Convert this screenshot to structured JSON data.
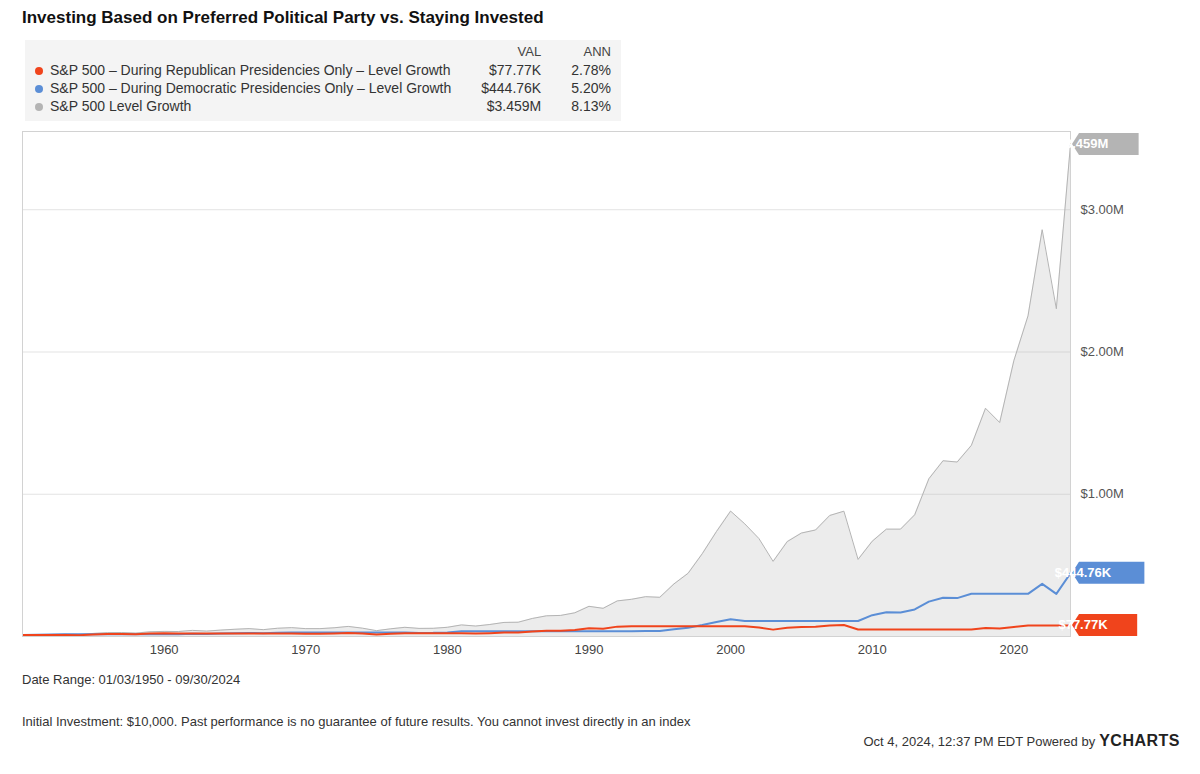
{
  "chart_data": {
    "type": "line",
    "title": "Investing Based on Preferred Political Party vs. Staying Invested",
    "x": [
      1950,
      1951,
      1952,
      1953,
      1954,
      1955,
      1956,
      1957,
      1958,
      1959,
      1960,
      1961,
      1962,
      1963,
      1964,
      1965,
      1966,
      1967,
      1968,
      1969,
      1970,
      1971,
      1972,
      1973,
      1974,
      1975,
      1976,
      1977,
      1978,
      1979,
      1980,
      1981,
      1982,
      1983,
      1984,
      1985,
      1986,
      1987,
      1988,
      1989,
      1990,
      1991,
      1992,
      1993,
      1994,
      1995,
      1996,
      1997,
      1998,
      1999,
      2000,
      2001,
      2002,
      2003,
      2004,
      2005,
      2006,
      2007,
      2008,
      2009,
      2010,
      2011,
      2012,
      2013,
      2014,
      2015,
      2016,
      2017,
      2018,
      2019,
      2020,
      2021,
      2022,
      2023,
      2024
    ],
    "xlim": [
      1950,
      2024
    ],
    "xticks": [
      1960,
      1970,
      1980,
      1990,
      2000,
      2010,
      2020
    ],
    "ylim": [
      0,
      3550000
    ],
    "yticks": [
      {
        "value": 1000000,
        "label": "$1.00M"
      },
      {
        "value": 2000000,
        "label": "$2.00M"
      },
      {
        "value": 3000000,
        "label": "$3.00M"
      }
    ],
    "grid": true,
    "legend": "top-left",
    "legend_columns": [
      "VAL",
      "ANN"
    ],
    "series": [
      {
        "name": "S&P 500 – During Republican Presidencies Only – Level Growth",
        "color": "#f0441c",
        "type": "line",
        "last_value_label": "$77.77K",
        "annualized_label": "2.78%",
        "values": [
          10000,
          10000,
          10000,
          10000,
          9320,
          13530,
          17110,
          17560,
          15030,
          20750,
          22520,
          21840,
          21840,
          21840,
          21840,
          21840,
          21840,
          21840,
          21840,
          21840,
          19360,
          19380,
          21460,
          24820,
          20520,
          14420,
          18960,
          22600,
          22600,
          22600,
          22600,
          22600,
          20400,
          23400,
          27440,
          27820,
          35160,
          40300,
          41120,
          46210,
          58810,
          54950,
          69410,
          72500,
          72500,
          72500,
          72500,
          72500,
          72500,
          72500,
          72500,
          72500,
          63030,
          48310,
          61050,
          66540,
          68520,
          77850,
          80590,
          49580,
          49580,
          49580,
          49580,
          49580,
          49580,
          49580,
          49580,
          49580,
          59200,
          55510,
          67000,
          77770,
          77770,
          77770,
          77770
        ]
      },
      {
        "name": "S&P 500 – During Democratic Presidencies Only – Level Growth",
        "color": "#5b8ed6",
        "type": "line",
        "last_value_label": "$444.76K",
        "annualized_label": "5.20%",
        "values": [
          10000,
          12240,
          14280,
          15960,
          15960,
          15960,
          15960,
          15960,
          15960,
          15960,
          15960,
          15960,
          19670,
          17330,
          20600,
          23290,
          25380,
          22060,
          26510,
          28540,
          28540,
          28540,
          28540,
          28540,
          28540,
          28540,
          28540,
          28540,
          25250,
          25510,
          28650,
          36050,
          36050,
          36050,
          36050,
          36050,
          36050,
          36050,
          36050,
          36050,
          36050,
          36050,
          36050,
          36050,
          38600,
          38000,
          50960,
          61290,
          80290,
          101690,
          121550,
          109220,
          109220,
          109220,
          109220,
          109220,
          109220,
          109220,
          109220,
          109220,
          150000,
          170000,
          168000,
          190000,
          245000,
          272000,
          270000,
          300000,
          300000,
          300000,
          300000,
          300000,
          370000,
          300000,
          444760
        ]
      },
      {
        "name": "S&P 500 Level Growth",
        "color": "#b4b4b4",
        "type": "area",
        "last_value_label": "$3.459M",
        "annualized_label": "8.13%",
        "values": [
          10000,
          12240,
          14280,
          15960,
          14880,
          21590,
          27300,
          28020,
          23990,
          33120,
          35940,
          34860,
          42960,
          37860,
          45000,
          50880,
          55440,
          48180,
          57900,
          62340,
          55260,
          55320,
          61260,
          70860,
          58560,
          41160,
          54120,
          64500,
          57060,
          57660,
          64740,
          81480,
          73560,
          84360,
          98940,
          100320,
          126780,
          145320,
          148260,
          166620,
          212040,
          198120,
          250260,
          261420,
          279900,
          275580,
          369540,
          444420,
          582240,
          737400,
          881400,
          792000,
          688800,
          528000,
          667200,
          727200,
          748800,
          850800,
          880800,
          541800,
          669600,
          754800,
          754800,
          855600,
          1108800,
          1235400,
          1226400,
          1343400,
          1604400,
          1504200,
          1938600,
          2253600,
          2859600,
          2304000,
          3459000
        ]
      }
    ],
    "caption": "Date Range: 01/03/1950 - 09/30/2024",
    "footnote": "Initial Investment: $10,000. Past performance is no guarantee of future results. You cannot invest directly in an index",
    "timestamp": "Oct 4, 2024, 12:37 PM EDT Powered by",
    "source": "YCHARTS"
  }
}
